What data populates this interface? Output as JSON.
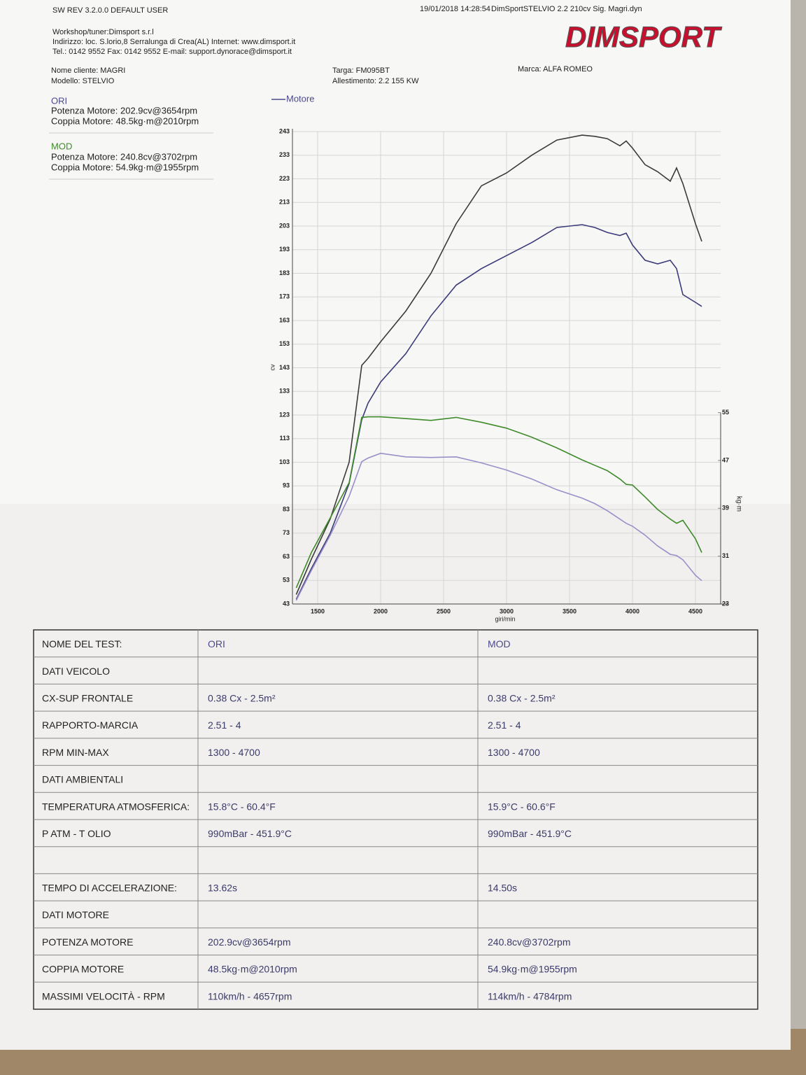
{
  "header": {
    "software": "SW REV 3.2.0.0  DEFAULT USER",
    "timestamp": "19/01/2018 14:28:54",
    "file": "DimSportSTELVIO 2.2 210cv Sig. Magri.dyn",
    "workshop": "Workshop/tuner:Dimsport s.r.l",
    "address": "Indirizzo: loc. S.lorio,8 Serralunga di Crea(AL) Internet: www.dimsport.it",
    "contacts": "Tel.: 0142 9552 Fax: 0142 9552 E-mail: support.dynorace@dimsport.it",
    "logo": "DIMSPORT"
  },
  "vehicle": {
    "client": "Nome cliente: MAGRI",
    "model": "Modello: STELVIO",
    "plate": "Targa: FM095BT",
    "trim": "Allestimento: 2.2 155 KW",
    "brand": "Marca: ALFA ROMEO"
  },
  "summary": [
    {
      "name": "ORI",
      "lines": [
        "Potenza Motore: 202.9cv@3654rpm",
        "Coppia Motore: 48.5kg·m@2010rpm"
      ]
    },
    {
      "name": "MOD",
      "lines": [
        "Potenza Motore: 240.8cv@3702rpm",
        "Coppia Motore: 54.9kg·m@1955rpm"
      ]
    }
  ],
  "chart_data": {
    "type": "line",
    "legend": "Motore",
    "x_label": "giri/min",
    "y_label": "cv",
    "y2_label": "kg·m",
    "grid": true,
    "x": [
      1330,
      1450,
      1600,
      1750,
      1850,
      1900,
      2000,
      2200,
      2400,
      2600,
      2800,
      3000,
      3200,
      3400,
      3600,
      3700,
      3800,
      3900,
      3950,
      4000,
      4100,
      4200,
      4300,
      4350,
      4400,
      4500,
      4550
    ],
    "xlim": [
      1300,
      4700
    ],
    "xticks": [
      1500,
      2000,
      2500,
      3000,
      3500,
      4000,
      4500
    ],
    "ylim": [
      43,
      243
    ],
    "yticks": [
      43,
      53,
      63,
      73,
      83,
      93,
      103,
      113,
      123,
      133,
      143,
      153,
      163,
      173,
      183,
      193,
      203,
      213,
      223,
      233,
      243
    ],
    "y2lim": [
      23,
      102
    ],
    "y2ticks": [
      23,
      31,
      39,
      47,
      55
    ],
    "series": [
      {
        "color": "#3a3a3a",
        "values": [
          47,
          62,
          79,
          103,
          144,
          147,
          154,
          167,
          183,
          204,
          220,
          225.5,
          233,
          239.4,
          241.5,
          241,
          240,
          237,
          239,
          236,
          229,
          226,
          222,
          227.6,
          221,
          204,
          196.5
        ]
      },
      {
        "color": "#3b3a7a",
        "values": [
          45,
          58,
          73,
          94,
          121,
          128,
          137,
          149,
          165,
          178,
          185,
          190.5,
          196,
          202.4,
          203.6,
          202.4,
          200.3,
          199,
          200,
          195,
          188.5,
          187,
          188.5,
          185,
          174,
          170.7,
          169
        ]
      },
      {
        "color": "#3f8a2a",
        "axis": "y2",
        "values": [
          25.7,
          31.6,
          37.4,
          43.3,
          54.2,
          54.3,
          54.3,
          54,
          53.7,
          54.2,
          53.4,
          52.4,
          50.9,
          49.1,
          47.1,
          46.2,
          45.3,
          43.9,
          43,
          42.9,
          40.9,
          38.8,
          37.2,
          36.5,
          37,
          33.9,
          31.6
        ]
      },
      {
        "color": "#9a8fc8",
        "axis": "y2",
        "values": [
          23.6,
          28.6,
          34.5,
          41,
          46.8,
          47.4,
          48.2,
          47.6,
          47.5,
          47.6,
          46.6,
          45.4,
          43.9,
          42.1,
          40.7,
          39.8,
          38.6,
          37.2,
          36.5,
          36,
          34.5,
          32.7,
          31.3,
          31.1,
          30.4,
          27.8,
          26.9
        ]
      }
    ]
  },
  "table": {
    "rows": [
      [
        "NOME DEL TEST:",
        "ORI",
        "MOD"
      ],
      [
        "DATI VEICOLO",
        null,
        null
      ],
      [
        "CX-SUP FRONTALE",
        "0.38 Cx - 2.5m²",
        "0.38 Cx - 2.5m²"
      ],
      [
        "RAPPORTO-MARCIA",
        "2.51 - 4",
        "2.51 - 4"
      ],
      [
        "RPM MIN-MAX",
        "1300 - 4700",
        "1300 - 4700"
      ],
      [
        "DATI AMBIENTALI",
        null,
        null
      ],
      [
        "TEMPERATURA ATMOSFERICA:",
        "15.8°C - 60.4°F",
        "15.9°C - 60.6°F"
      ],
      [
        "P ATM - T OLIO",
        "990mBar - 451.9°C",
        "990mBar - 451.9°C"
      ],
      [
        null,
        null,
        null
      ],
      [
        "TEMPO DI ACCELERAZIONE:",
        "13.62s",
        "14.50s"
      ],
      [
        "DATI MOTORE",
        null,
        null
      ],
      [
        "POTENZA MOTORE",
        "202.9cv@3654rpm",
        "240.8cv@3702rpm"
      ],
      [
        "COPPIA MOTORE",
        "48.5kg·m@2010rpm",
        "54.9kg·m@1955rpm"
      ],
      [
        "MASSIMI VELOCITÀ - RPM",
        "110km/h - 4657rpm",
        "114km/h - 4784rpm"
      ]
    ]
  }
}
